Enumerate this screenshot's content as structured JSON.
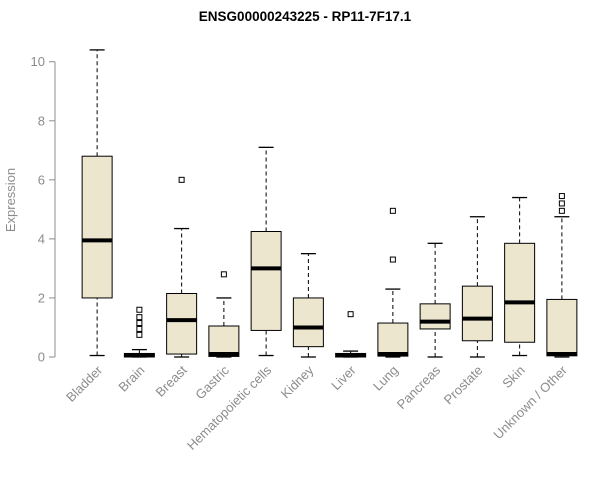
{
  "chart_data": {
    "type": "boxplot",
    "title": "ENSG00000243225 - RP11-7F17.1",
    "xlabel": "",
    "ylabel": "Expression",
    "ylim": [
      0,
      10.6
    ],
    "yticks": [
      0,
      2,
      4,
      6,
      8,
      10
    ],
    "grid": false,
    "legend": false,
    "categories": [
      "Bladder",
      "Brain",
      "Breast",
      "Gastric",
      "Hematopoietic cells",
      "Kidney",
      "Liver",
      "Lung",
      "Pancreas",
      "Prostate",
      "Skin",
      "Unknown / Other"
    ],
    "boxes": [
      {
        "category": "Bladder",
        "whisker_low": 0.05,
        "q1": 2.0,
        "median": 3.95,
        "q3": 6.8,
        "whisker_high": 10.4,
        "outliers": []
      },
      {
        "category": "Brain",
        "whisker_low": 0.0,
        "q1": 0.0,
        "median": 0.05,
        "q3": 0.12,
        "whisker_high": 0.25,
        "outliers": [
          0.75,
          0.95,
          1.15,
          1.35,
          1.6
        ]
      },
      {
        "category": "Breast",
        "whisker_low": 0.0,
        "q1": 0.1,
        "median": 1.25,
        "q3": 2.15,
        "whisker_high": 4.35,
        "outliers": [
          6.0
        ]
      },
      {
        "category": "Gastric",
        "whisker_low": 0.0,
        "q1": 0.02,
        "median": 0.1,
        "q3": 1.05,
        "whisker_high": 2.0,
        "outliers": [
          2.8
        ]
      },
      {
        "category": "Hematopoietic cells",
        "whisker_low": 0.05,
        "q1": 0.9,
        "median": 3.0,
        "q3": 4.25,
        "whisker_high": 7.1,
        "outliers": []
      },
      {
        "category": "Kidney",
        "whisker_low": 0.0,
        "q1": 0.35,
        "median": 1.0,
        "q3": 2.0,
        "whisker_high": 3.5,
        "outliers": []
      },
      {
        "category": "Liver",
        "whisker_low": 0.0,
        "q1": 0.0,
        "median": 0.05,
        "q3": 0.12,
        "whisker_high": 0.2,
        "outliers": [
          1.45
        ]
      },
      {
        "category": "Lung",
        "whisker_low": 0.0,
        "q1": 0.03,
        "median": 0.1,
        "q3": 1.15,
        "whisker_high": 2.3,
        "outliers": [
          3.3,
          4.95
        ]
      },
      {
        "category": "Pancreas",
        "whisker_low": 0.0,
        "q1": 0.95,
        "median": 1.2,
        "q3": 1.8,
        "whisker_high": 3.85,
        "outliers": []
      },
      {
        "category": "Prostate",
        "whisker_low": 0.0,
        "q1": 0.55,
        "median": 1.3,
        "q3": 2.4,
        "whisker_high": 4.75,
        "outliers": []
      },
      {
        "category": "Skin",
        "whisker_low": 0.05,
        "q1": 0.5,
        "median": 1.85,
        "q3": 3.85,
        "whisker_high": 5.4,
        "outliers": []
      },
      {
        "category": "Unknown / Other",
        "whisker_low": 0.0,
        "q1": 0.04,
        "median": 0.1,
        "q3": 1.95,
        "whisker_high": 4.75,
        "outliers": [
          4.95,
          5.2,
          5.45
        ]
      }
    ],
    "style": {
      "box_fill": "#EDE6CF",
      "box_stroke": "#000000",
      "median_color": "#000000",
      "whisker_style": "dashed",
      "outlier_shape": "open-square",
      "axis_color": "#8C8C8C",
      "label_color": "#8C8C8C",
      "title_color": "#000000",
      "background": "#FFFFFF"
    }
  }
}
